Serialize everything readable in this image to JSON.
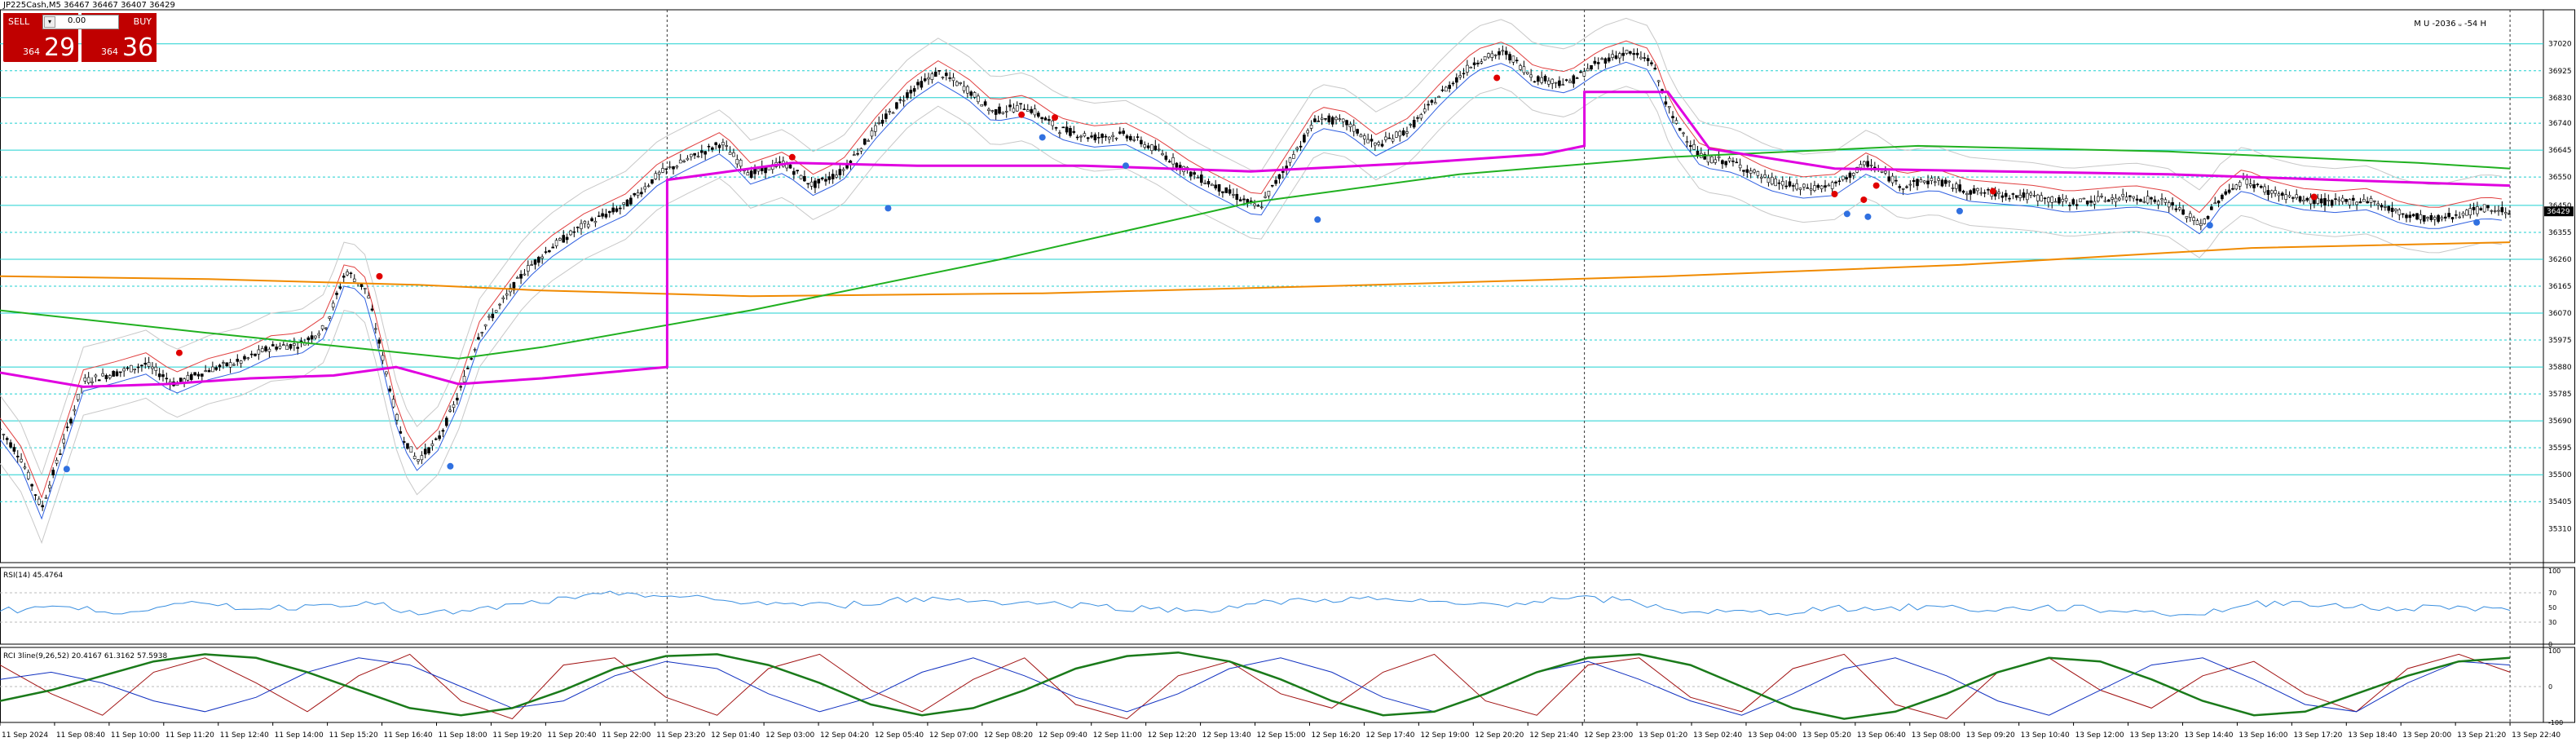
{
  "header": {
    "title": "JP225Cash,M5",
    "ohlc": "36467 36467 36407 36429",
    "corner_note": "M U -2036 ᵤ -54 H"
  },
  "trade_panel": {
    "sell_label": "SELL",
    "buy_label": "BUY",
    "lot_value": "0.00",
    "sell_small": "364",
    "sell_big": "29",
    "buy_small": "364",
    "buy_big": "36",
    "colors": {
      "button": "#c00000",
      "text": "#ffffff"
    }
  },
  "rsi_label": "RSI(14) 45.4764",
  "rci_label": "RCI 3line(9,26,52) 20.4167 61.3162 57.5938",
  "chart_data": [
    {
      "type": "candlestick",
      "symbol": "JP225Cash",
      "timeframe": "M5",
      "y_ticks": [
        37020,
        36925,
        36830,
        36740,
        36645,
        36550,
        36450,
        36355,
        36260,
        36165,
        36070,
        35975,
        35880,
        35785,
        35690,
        35595,
        35500,
        35405,
        35310
      ],
      "ylim": [
        35190,
        37140
      ],
      "x_tick_labels": [
        "11 Sep 2024",
        "11 Sep 08:40",
        "11 Sep 10:00",
        "11 Sep 11:20",
        "11 Sep 12:40",
        "11 Sep 14:00",
        "11 Sep 15:20",
        "11 Sep 16:40",
        "11 Sep 18:00",
        "11 Sep 19:20",
        "11 Sep 20:40",
        "11 Sep 22:00",
        "11 Sep 23:20",
        "12 Sep 01:40",
        "12 Sep 03:00",
        "12 Sep 04:20",
        "12 Sep 05:40",
        "12 Sep 07:00",
        "12 Sep 08:20",
        "12 Sep 09:40",
        "12 Sep 11:00",
        "12 Sep 12:20",
        "12 Sep 13:40",
        "12 Sep 15:00",
        "12 Sep 16:20",
        "12 Sep 17:40",
        "12 Sep 19:00",
        "12 Sep 20:20",
        "12 Sep 21:40",
        "12 Sep 23:00",
        "13 Sep 01:20",
        "13 Sep 02:40",
        "13 Sep 04:00",
        "13 Sep 05:20",
        "13 Sep 06:40",
        "13 Sep 08:00",
        "13 Sep 09:20",
        "13 Sep 10:40",
        "13 Sep 12:00",
        "13 Sep 13:20",
        "13 Sep 14:40",
        "13 Sep 16:00",
        "13 Sep 17:20",
        "13 Sep 18:40",
        "13 Sep 20:00",
        "13 Sep 21:20",
        "13 Sep 22:40"
      ],
      "price_path": [
        [
          0,
          35660
        ],
        [
          0.5,
          35560
        ],
        [
          1.0,
          35380
        ],
        [
          1.4,
          35560
        ],
        [
          2.0,
          35830
        ],
        [
          2.8,
          35860
        ],
        [
          3.5,
          35890
        ],
        [
          4.2,
          35820
        ],
        [
          5.0,
          35870
        ],
        [
          5.8,
          35900
        ],
        [
          6.5,
          35950
        ],
        [
          7.2,
          35960
        ],
        [
          7.8,
          36020
        ],
        [
          8.3,
          36220
        ],
        [
          8.8,
          36150
        ],
        [
          9.2,
          35900
        ],
        [
          9.6,
          35650
        ],
        [
          10.0,
          35550
        ],
        [
          10.5,
          35620
        ],
        [
          11.0,
          35780
        ],
        [
          11.5,
          36000
        ],
        [
          12.0,
          36100
        ],
        [
          12.6,
          36220
        ],
        [
          13.2,
          36300
        ],
        [
          14.0,
          36380
        ],
        [
          15.0,
          36450
        ],
        [
          15.8,
          36560
        ],
        [
          16.6,
          36620
        ],
        [
          17.3,
          36670
        ],
        [
          18.0,
          36560
        ],
        [
          18.8,
          36600
        ],
        [
          19.5,
          36520
        ],
        [
          20.2,
          36570
        ],
        [
          21.0,
          36720
        ],
        [
          21.8,
          36850
        ],
        [
          22.5,
          36920
        ],
        [
          23.2,
          36860
        ],
        [
          23.8,
          36780
        ],
        [
          24.6,
          36800
        ],
        [
          25.4,
          36720
        ],
        [
          26.2,
          36690
        ],
        [
          27.0,
          36700
        ],
        [
          27.8,
          36640
        ],
        [
          28.6,
          36560
        ],
        [
          29.4,
          36500
        ],
        [
          30.2,
          36440
        ],
        [
          30.9,
          36600
        ],
        [
          31.6,
          36760
        ],
        [
          32.3,
          36740
        ],
        [
          33.0,
          36660
        ],
        [
          33.8,
          36720
        ],
        [
          34.6,
          36850
        ],
        [
          35.4,
          36960
        ],
        [
          36.1,
          36990
        ],
        [
          36.8,
          36900
        ],
        [
          37.6,
          36880
        ],
        [
          38.4,
          36960
        ],
        [
          39.0,
          36990
        ],
        [
          39.6,
          36960
        ],
        [
          40.1,
          36760
        ],
        [
          40.8,
          36620
        ],
        [
          41.6,
          36600
        ],
        [
          42.4,
          36540
        ],
        [
          43.2,
          36510
        ],
        [
          44.0,
          36520
        ],
        [
          44.8,
          36600
        ],
        [
          45.6,
          36520
        ],
        [
          46.4,
          36540
        ],
        [
          47.2,
          36500
        ],
        [
          48.0,
          36490
        ],
        [
          48.8,
          36480
        ],
        [
          49.6,
          36460
        ],
        [
          50.4,
          36470
        ],
        [
          51.2,
          36480
        ],
        [
          52.0,
          36460
        ],
        [
          52.8,
          36380
        ],
        [
          53.2,
          36470
        ],
        [
          53.8,
          36540
        ],
        [
          54.4,
          36500
        ],
        [
          55.2,
          36470
        ],
        [
          56.0,
          36460
        ],
        [
          56.8,
          36470
        ],
        [
          57.6,
          36420
        ],
        [
          58.4,
          36400
        ],
        [
          59.0,
          36420
        ],
        [
          59.6,
          36440
        ],
        [
          60.2,
          36429
        ]
      ],
      "indicators": {
        "ma_orange": [
          [
            0,
            36200
          ],
          [
            5,
            36190
          ],
          [
            10,
            36170
          ],
          [
            13,
            36150
          ],
          [
            18,
            36130
          ],
          [
            25,
            36140
          ],
          [
            33,
            36170
          ],
          [
            40,
            36200
          ],
          [
            47,
            36240
          ],
          [
            54,
            36300
          ],
          [
            60.2,
            36320
          ]
        ],
        "ma_green_slow": [
          [
            0,
            36080
          ],
          [
            5,
            36000
          ],
          [
            9,
            35940
          ],
          [
            11,
            35910
          ],
          [
            13,
            35950
          ],
          [
            18,
            36080
          ],
          [
            24,
            36260
          ],
          [
            30,
            36460
          ],
          [
            35,
            36560
          ],
          [
            40,
            36620
          ],
          [
            46,
            36660
          ],
          [
            52,
            36640
          ],
          [
            58,
            36600
          ],
          [
            60.2,
            36580
          ]
        ],
        "vwap_magenta": [
          [
            0,
            35860
          ],
          [
            2,
            35810
          ],
          [
            4,
            35820
          ],
          [
            6,
            35840
          ],
          [
            8,
            35850
          ],
          [
            9.5,
            35880
          ],
          [
            11,
            35820
          ],
          [
            13,
            35840
          ],
          [
            14.5,
            35860
          ],
          [
            16,
            35880
          ],
          [
            16,
            36540
          ],
          [
            19,
            36600
          ],
          [
            22,
            36590
          ],
          [
            26,
            36590
          ],
          [
            30,
            36570
          ],
          [
            34,
            36600
          ],
          [
            37,
            36630
          ],
          [
            38,
            36660
          ],
          [
            38,
            36850
          ],
          [
            40,
            36850
          ],
          [
            41,
            36650
          ],
          [
            44,
            36580
          ],
          [
            48,
            36570
          ],
          [
            52,
            36560
          ],
          [
            56,
            36540
          ],
          [
            60.2,
            36520
          ]
        ],
        "red_markers": [
          [
            4.3,
            35930
          ],
          [
            9.1,
            36200
          ],
          [
            19.0,
            36620
          ],
          [
            24.5,
            36770
          ],
          [
            25.3,
            36760
          ],
          [
            35.9,
            36900
          ],
          [
            44.0,
            36490
          ],
          [
            44.7,
            36470
          ],
          [
            45.0,
            36520
          ],
          [
            47.8,
            36500
          ],
          [
            55.5,
            36480
          ]
        ],
        "blue_markers": [
          [
            1.6,
            35520
          ],
          [
            10.8,
            35530
          ],
          [
            21.3,
            36440
          ],
          [
            25.0,
            36690
          ],
          [
            27.0,
            36590
          ],
          [
            31.6,
            36400
          ],
          [
            44.3,
            36420
          ],
          [
            44.8,
            36410
          ],
          [
            47.0,
            36430
          ],
          [
            53.0,
            36380
          ],
          [
            59.4,
            36390
          ]
        ]
      },
      "horizontal_levels": [
        37020,
        36925,
        36830,
        36740,
        36645,
        36550,
        36450,
        36355,
        36260,
        36165,
        36070,
        35975,
        35880,
        35785,
        35690,
        35595,
        35500,
        35405
      ],
      "vertical_markers_at_x": [
        16,
        38,
        60.2
      ]
    },
    {
      "type": "line",
      "name": "RSI(14)",
      "ylim": [
        0,
        100
      ],
      "y_ticks": [
        100,
        70,
        50,
        30,
        0
      ],
      "values_sampled": [
        45,
        52,
        44,
        50,
        55,
        48,
        53,
        58,
        40,
        45,
        55,
        62,
        70,
        64,
        58,
        55,
        52,
        60,
        62,
        58,
        56,
        52,
        48,
        46,
        55,
        60,
        62,
        58,
        54,
        56,
        62,
        60,
        46,
        44,
        42,
        50,
        48,
        52,
        46,
        50,
        48,
        44,
        40,
        54,
        58,
        50,
        48,
        52,
        46
      ]
    },
    {
      "type": "line",
      "name": "RCI 3line(9,26,52)",
      "ylim": [
        -100,
        100
      ],
      "y_ticks": [
        100,
        0,
        -100
      ],
      "series": [
        {
          "name": "RCI 9",
          "color": "#a01010",
          "values_sampled": [
            60,
            -20,
            -80,
            40,
            80,
            10,
            -70,
            30,
            90,
            -40,
            -90,
            60,
            80,
            -30,
            -80,
            50,
            90,
            -10,
            -70,
            20,
            80,
            -50,
            -90,
            30,
            70,
            -20,
            -60,
            40,
            90,
            -40,
            -80,
            60,
            80,
            -30,
            -70,
            50,
            90,
            -50,
            -90,
            40,
            80,
            -10,
            -60,
            30,
            70,
            -20,
            -70,
            50,
            90,
            40
          ]
        },
        {
          "name": "RCI 26",
          "color": "#1030c0",
          "values_sampled": [
            20,
            40,
            10,
            -40,
            -70,
            -30,
            40,
            80,
            60,
            0,
            -60,
            -40,
            30,
            70,
            50,
            -20,
            -70,
            -30,
            40,
            80,
            30,
            -30,
            -70,
            -20,
            50,
            80,
            40,
            -30,
            -70,
            -20,
            40,
            70,
            20,
            -40,
            -80,
            -20,
            50,
            80,
            30,
            -40,
            -80,
            -10,
            60,
            80,
            20,
            -50,
            -70,
            10,
            70,
            60
          ]
        },
        {
          "name": "RCI 52",
          "color": "#1a7a1a",
          "values_sampled": [
            -40,
            -10,
            30,
            70,
            90,
            80,
            40,
            -10,
            -60,
            -80,
            -60,
            -10,
            50,
            85,
            90,
            60,
            10,
            -50,
            -80,
            -60,
            -10,
            50,
            85,
            95,
            70,
            20,
            -40,
            -80,
            -70,
            -20,
            40,
            80,
            90,
            60,
            0,
            -60,
            -90,
            -70,
            -20,
            40,
            80,
            70,
            20,
            -40,
            -80,
            -70,
            -20,
            30,
            70,
            80
          ]
        }
      ]
    }
  ]
}
